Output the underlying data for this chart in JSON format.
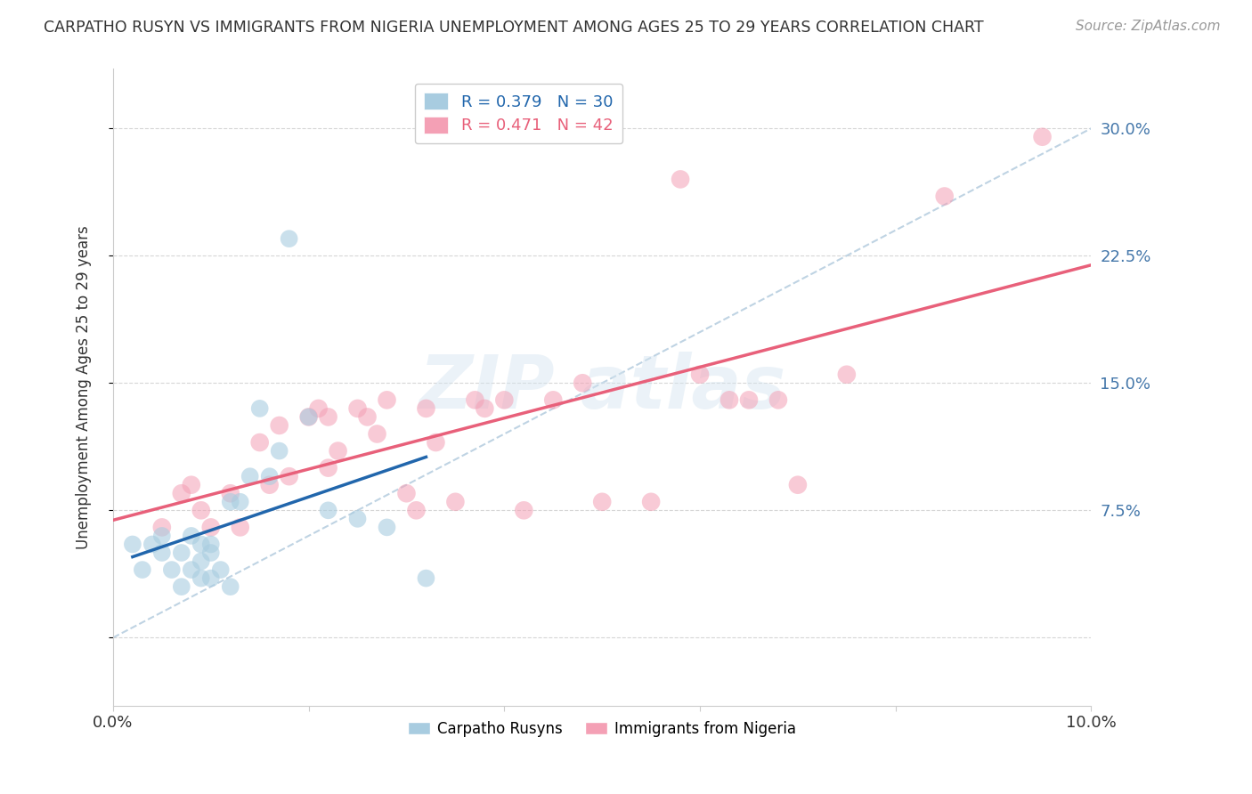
{
  "title": "CARPATHO RUSYN VS IMMIGRANTS FROM NIGERIA UNEMPLOYMENT AMONG AGES 25 TO 29 YEARS CORRELATION CHART",
  "source": "Source: ZipAtlas.com",
  "ylabel": "Unemployment Among Ages 25 to 29 years",
  "xlim": [
    0.0,
    0.1
  ],
  "ylim": [
    -0.04,
    0.335
  ],
  "yticks": [
    0.0,
    0.075,
    0.15,
    0.225,
    0.3
  ],
  "ytick_labels_right": [
    "",
    "7.5%",
    "15.0%",
    "22.5%",
    "30.0%"
  ],
  "xticks": [
    0.0,
    0.02,
    0.04,
    0.06,
    0.08,
    0.1
  ],
  "blue_color": "#a8cce0",
  "pink_color": "#f4a0b5",
  "blue_line_color": "#2166ac",
  "pink_line_color": "#e8607a",
  "diag_line_color": "#b8cfe0",
  "background_color": "#ffffff",
  "grid_color": "#cccccc",
  "blue_scatter_x": [
    0.002,
    0.003,
    0.004,
    0.005,
    0.005,
    0.006,
    0.007,
    0.007,
    0.008,
    0.008,
    0.009,
    0.009,
    0.009,
    0.01,
    0.01,
    0.01,
    0.011,
    0.012,
    0.012,
    0.013,
    0.014,
    0.015,
    0.016,
    0.017,
    0.018,
    0.02,
    0.022,
    0.025,
    0.028,
    0.032
  ],
  "blue_scatter_y": [
    0.055,
    0.04,
    0.055,
    0.05,
    0.06,
    0.04,
    0.03,
    0.05,
    0.04,
    0.06,
    0.035,
    0.045,
    0.055,
    0.05,
    0.035,
    0.055,
    0.04,
    0.03,
    0.08,
    0.08,
    0.095,
    0.135,
    0.095,
    0.11,
    0.235,
    0.13,
    0.075,
    0.07,
    0.065,
    0.035
  ],
  "pink_scatter_x": [
    0.005,
    0.007,
    0.008,
    0.009,
    0.01,
    0.012,
    0.013,
    0.015,
    0.016,
    0.017,
    0.018,
    0.02,
    0.021,
    0.022,
    0.022,
    0.023,
    0.025,
    0.026,
    0.027,
    0.028,
    0.03,
    0.031,
    0.032,
    0.033,
    0.035,
    0.037,
    0.038,
    0.04,
    0.042,
    0.045,
    0.048,
    0.05,
    0.055,
    0.058,
    0.06,
    0.063,
    0.065,
    0.068,
    0.07,
    0.075,
    0.085,
    0.095
  ],
  "pink_scatter_y": [
    0.065,
    0.085,
    0.09,
    0.075,
    0.065,
    0.085,
    0.065,
    0.115,
    0.09,
    0.125,
    0.095,
    0.13,
    0.135,
    0.13,
    0.1,
    0.11,
    0.135,
    0.13,
    0.12,
    0.14,
    0.085,
    0.075,
    0.135,
    0.115,
    0.08,
    0.14,
    0.135,
    0.14,
    0.075,
    0.14,
    0.15,
    0.08,
    0.08,
    0.27,
    0.155,
    0.14,
    0.14,
    0.14,
    0.09,
    0.155,
    0.26,
    0.295
  ],
  "legend_items": [
    {
      "label": "R = 0.379   N = 30",
      "color": "#a8cce0",
      "text_color": "#2166ac"
    },
    {
      "label": "R = 0.471   N = 42",
      "color": "#f4a0b5",
      "text_color": "#e8607a"
    }
  ],
  "bottom_legend": [
    {
      "label": "Carpatho Rusyns",
      "color": "#a8cce0"
    },
    {
      "label": "Immigrants from Nigeria",
      "color": "#f4a0b5"
    }
  ]
}
